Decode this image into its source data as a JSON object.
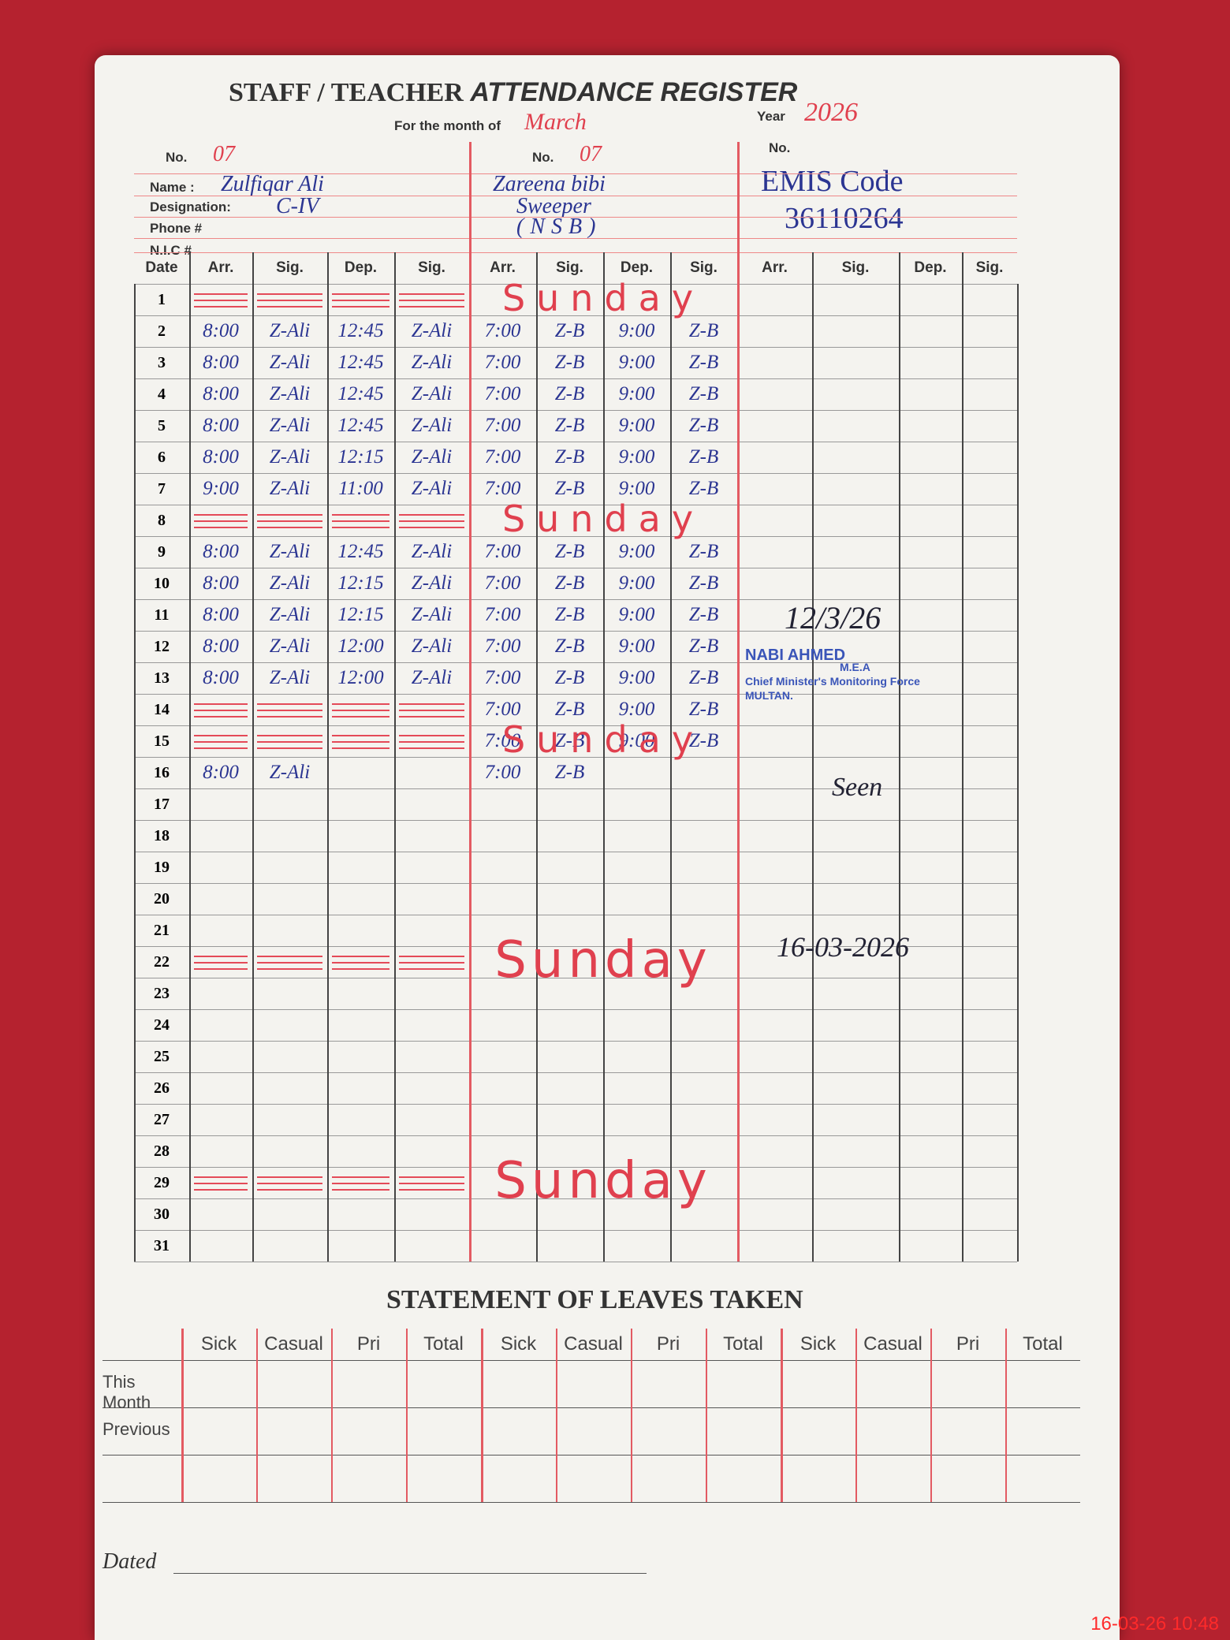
{
  "header": {
    "title_left": "STAFF / TEACHER",
    "title_right": "ATTENDANCE REGISTER",
    "month_label": "For the month of",
    "month": "March",
    "year_label": "Year",
    "year": "2026"
  },
  "labels": {
    "no": "No.",
    "name": "Name :",
    "designation": "Designation:",
    "phone": "Phone #",
    "nic": "N.I.C #"
  },
  "staff": [
    {
      "no": "07",
      "name": "Zulfiqar Ali",
      "designation": "C-IV"
    },
    {
      "no": "07",
      "name": "Zareena bibi",
      "designation": "Sweeper",
      "extra": "(NSB)"
    },
    {
      "name": "EMIS Code",
      "designation": "36110264"
    }
  ],
  "columns": [
    "Date",
    "Arr.",
    "Sig.",
    "Dep.",
    "Sig.",
    "Arr.",
    "Sig.",
    "Dep.",
    "Sig.",
    "Arr.",
    "Sig.",
    "Dep.",
    "Sig."
  ],
  "rows": [
    {
      "date": "1",
      "note": "Sunday"
    },
    {
      "date": "2",
      "entries": [
        "8:00",
        "Z-Ali",
        "12:45",
        "Z-Ali",
        "7:00",
        "Z-B",
        "9:00",
        "Z-B"
      ]
    },
    {
      "date": "3",
      "entries": [
        "8:00",
        "Z-Ali",
        "12:45",
        "Z-Ali",
        "7:00",
        "Z-B",
        "9:00",
        "Z-B"
      ]
    },
    {
      "date": "4",
      "entries": [
        "8:00",
        "Z-Ali",
        "12:45",
        "Z-Ali",
        "7:00",
        "Z-B",
        "9:00",
        "Z-B"
      ]
    },
    {
      "date": "5",
      "entries": [
        "8:00",
        "Z-Ali",
        "12:45",
        "Z-Ali",
        "7:00",
        "Z-B",
        "9:00",
        "Z-B"
      ]
    },
    {
      "date": "6",
      "entries": [
        "8:00",
        "Z-Ali",
        "12:15",
        "Z-Ali",
        "7:00",
        "Z-B",
        "9:00",
        "Z-B"
      ]
    },
    {
      "date": "7",
      "entries": [
        "9:00",
        "Z-Ali",
        "11:00",
        "Z-Ali",
        "7:00",
        "Z-B",
        "9:00",
        "Z-B"
      ]
    },
    {
      "date": "8",
      "note": "Sunday"
    },
    {
      "date": "9",
      "entries": [
        "8:00",
        "Z-Ali",
        "12:45",
        "Z-Ali",
        "7:00",
        "Z-B",
        "9:00",
        "Z-B"
      ]
    },
    {
      "date": "10",
      "entries": [
        "8:00",
        "Z-Ali",
        "12:15",
        "Z-Ali",
        "7:00",
        "Z-B",
        "9:00",
        "Z-B"
      ]
    },
    {
      "date": "11",
      "entries": [
        "8:00",
        "Z-Ali",
        "12:15",
        "Z-Ali",
        "7:00",
        "Z-B",
        "9:00",
        "Z-B"
      ]
    },
    {
      "date": "12",
      "entries": [
        "8:00",
        "Z-Ali",
        "12:00",
        "Z-Ali",
        "7:00",
        "Z-B",
        "9:00",
        "Z-B"
      ]
    },
    {
      "date": "13",
      "entries": [
        "8:00",
        "Z-Ali",
        "12:00",
        "Z-Ali",
        "7:00",
        "Z-B",
        "9:00",
        "Z-B"
      ]
    },
    {
      "date": "14",
      "entries": [
        null,
        null,
        null,
        null,
        "7:00",
        "Z-B",
        "9:00",
        "Z-B"
      ]
    },
    {
      "date": "15",
      "entries": [
        null,
        null,
        null,
        null,
        "7:00",
        "Z-B",
        "9:00",
        "Z-B"
      ],
      "note": "Sunday"
    },
    {
      "date": "16",
      "entries": [
        "8:00",
        "Z-Ali",
        null,
        null,
        "7:00",
        "Z-B"
      ]
    },
    {
      "date": "17"
    },
    {
      "date": "18"
    },
    {
      "date": "19"
    },
    {
      "date": "20"
    },
    {
      "date": "21"
    },
    {
      "date": "22",
      "note": "Sunday"
    },
    {
      "date": "23"
    },
    {
      "date": "24"
    },
    {
      "date": "25"
    },
    {
      "date": "26"
    },
    {
      "date": "27"
    },
    {
      "date": "28"
    },
    {
      "date": "29",
      "note": "Sunday"
    },
    {
      "date": "30"
    },
    {
      "date": "31"
    }
  ],
  "verification": [
    {
      "date": "12/3/26",
      "stamp": [
        "NABI AHMED",
        "M.E.A",
        "Chief Minister's Monitoring Force",
        "MULTAN."
      ]
    },
    {
      "mark": "Seen",
      "date": "16-03-2026"
    }
  ],
  "leaves": {
    "title": "STATEMENT OF LEAVES TAKEN",
    "columns": [
      "Sick",
      "Casual",
      "Pri",
      "Total"
    ],
    "row_labels": [
      "This Month",
      "Previous"
    ]
  },
  "footer": {
    "dated": "Dated",
    "timestamp": "16-03-26 10:48"
  }
}
